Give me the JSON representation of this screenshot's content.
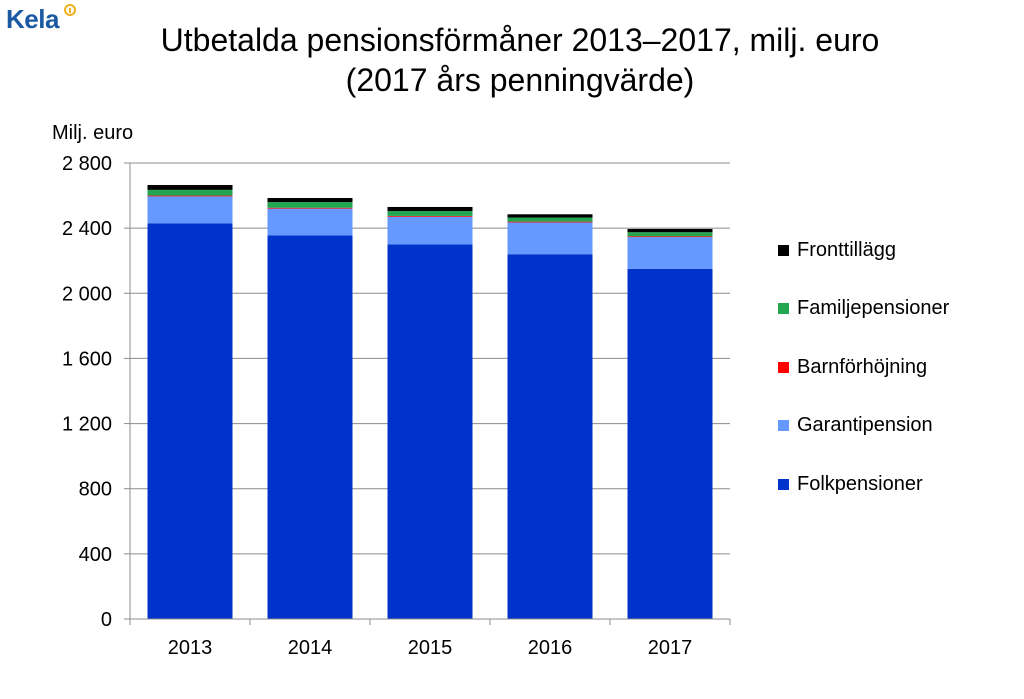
{
  "logo": {
    "text": "Kela"
  },
  "title_lines": [
    "Utbetalda pensionsförmåner 2013–2017, milj. euro",
    "(2017 års penningvärde)"
  ],
  "chart_data": {
    "type": "bar",
    "stacked": true,
    "ylabel": "Milj. euro",
    "ylim": [
      0,
      2800
    ],
    "yticks": [
      0,
      400,
      800,
      1200,
      1600,
      2000,
      2400,
      2800
    ],
    "ytick_labels": [
      "0",
      "400",
      "800",
      "1 200",
      "1 600",
      "2 000",
      "2 400",
      "2 800"
    ],
    "categories": [
      "2013",
      "2014",
      "2015",
      "2016",
      "2017"
    ],
    "grid": true,
    "legend_position": "right",
    "series": [
      {
        "name": "Folkpensioner",
        "color": "#0033cc",
        "values": [
          2430,
          2355,
          2300,
          2240,
          2150
        ]
      },
      {
        "name": "Garantipension",
        "color": "#6699ff",
        "values": [
          165,
          165,
          170,
          195,
          195
        ]
      },
      {
        "name": "Barnförhöjning",
        "color": "#ff0000",
        "values": [
          5,
          5,
          5,
          5,
          5
        ]
      },
      {
        "name": "Familjepensioner",
        "color": "#22a650",
        "values": [
          35,
          35,
          30,
          25,
          25
        ]
      },
      {
        "name": "Fronttillägg",
        "color": "#000000",
        "values": [
          30,
          25,
          25,
          20,
          20
        ]
      }
    ]
  }
}
